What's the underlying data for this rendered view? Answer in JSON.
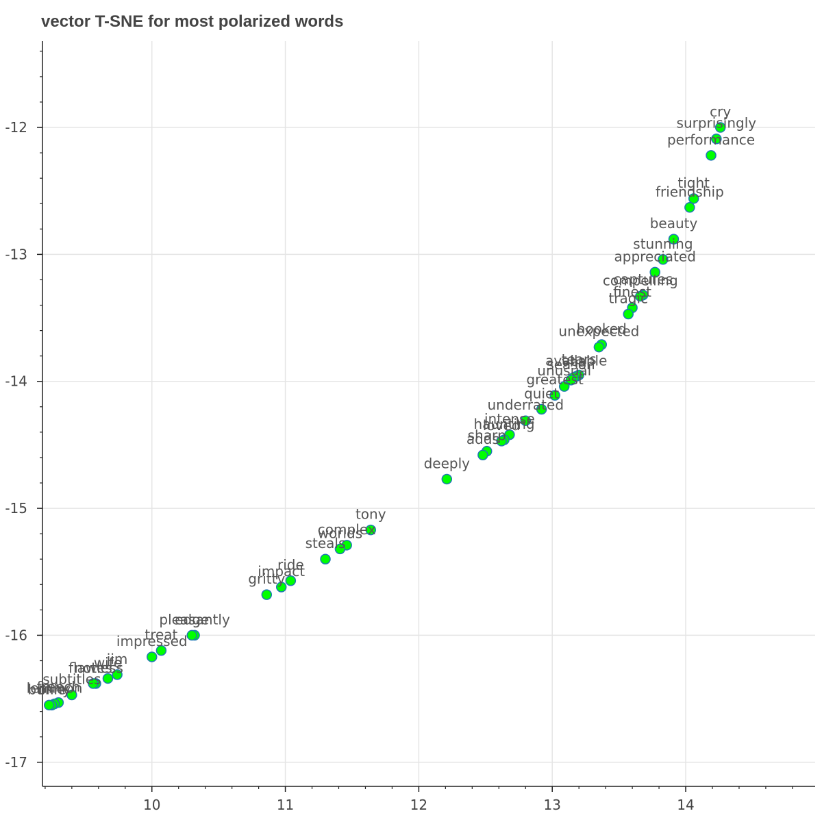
{
  "chart_data": {
    "type": "scatter",
    "title": "vector T-SNE for most polarized words",
    "xlabel": "",
    "ylabel": "",
    "xlim": [
      9.18,
      14.97
    ],
    "ylim": [
      -17.19,
      -11.32
    ],
    "grid": true,
    "x_ticks": [
      10,
      11,
      12,
      13,
      14
    ],
    "y_ticks": [
      -12,
      -13,
      -14,
      -15,
      -16,
      -17
    ],
    "marker_color": "#00ff00",
    "marker_edge_color": "#1f77b4",
    "points": [
      {
        "x": 14.26,
        "y": -12.0,
        "label": "cry"
      },
      {
        "x": 14.23,
        "y": -12.09,
        "label": "surprisingly"
      },
      {
        "x": 14.19,
        "y": -12.22,
        "label": "performance"
      },
      {
        "x": 14.06,
        "y": -12.56,
        "label": "tight"
      },
      {
        "x": 14.03,
        "y": -12.63,
        "label": "friendship"
      },
      {
        "x": 13.91,
        "y": -12.88,
        "label": "beauty"
      },
      {
        "x": 13.83,
        "y": -13.04,
        "label": "stunning"
      },
      {
        "x": 13.77,
        "y": -13.14,
        "label": "appreciated"
      },
      {
        "x": 13.68,
        "y": -13.32,
        "label": "captures"
      },
      {
        "x": 13.66,
        "y": -13.33,
        "label": "compelling"
      },
      {
        "x": 13.6,
        "y": -13.42,
        "label": "finest"
      },
      {
        "x": 13.57,
        "y": -13.47,
        "label": "tragic"
      },
      {
        "x": 13.37,
        "y": -13.71,
        "label": "hooked"
      },
      {
        "x": 13.35,
        "y": -13.73,
        "label": "unexpected"
      },
      {
        "x": 13.2,
        "y": -13.95,
        "label": "tears"
      },
      {
        "x": 13.18,
        "y": -13.96,
        "label": "available"
      },
      {
        "x": 13.16,
        "y": -13.97,
        "label": "vhs"
      },
      {
        "x": 13.14,
        "y": -13.99,
        "label": "season"
      },
      {
        "x": 13.09,
        "y": -14.04,
        "label": "unusual"
      },
      {
        "x": 13.02,
        "y": -14.11,
        "label": "greatest"
      },
      {
        "x": 12.92,
        "y": -14.22,
        "label": "quiet"
      },
      {
        "x": 12.8,
        "y": -14.31,
        "label": "underrated"
      },
      {
        "x": 12.68,
        "y": -14.42,
        "label": "intense"
      },
      {
        "x": 12.64,
        "y": -14.46,
        "label": "haunting"
      },
      {
        "x": 12.62,
        "y": -14.47,
        "label": "loved"
      },
      {
        "x": 12.51,
        "y": -14.55,
        "label": "sharp"
      },
      {
        "x": 12.48,
        "y": -14.58,
        "label": "adds"
      },
      {
        "x": 12.21,
        "y": -14.77,
        "label": "deeply"
      },
      {
        "x": 11.64,
        "y": -15.17,
        "label": "tony"
      },
      {
        "x": 11.46,
        "y": -15.29,
        "label": "complex"
      },
      {
        "x": 11.41,
        "y": -15.32,
        "label": "worlds"
      },
      {
        "x": 11.3,
        "y": -15.4,
        "label": "steals"
      },
      {
        "x": 11.04,
        "y": -15.57,
        "label": "ride"
      },
      {
        "x": 10.97,
        "y": -15.62,
        "label": "impact"
      },
      {
        "x": 10.86,
        "y": -15.68,
        "label": "gritty"
      },
      {
        "x": 10.32,
        "y": -16.0,
        "label": "pleasantly"
      },
      {
        "x": 10.3,
        "y": -16.0,
        "label": "edge"
      },
      {
        "x": 10.07,
        "y": -16.12,
        "label": "treat"
      },
      {
        "x": 10.0,
        "y": -16.17,
        "label": "impressed"
      },
      {
        "x": 9.74,
        "y": -16.31,
        "label": "jim"
      },
      {
        "x": 9.67,
        "y": -16.34,
        "label": "wife"
      },
      {
        "x": 9.58,
        "y": -16.38,
        "label": "flawless"
      },
      {
        "x": 9.56,
        "y": -16.38,
        "label": "notes"
      },
      {
        "x": 9.4,
        "y": -16.47,
        "label": "subtitles"
      },
      {
        "x": 9.3,
        "y": -16.53,
        "label": "french"
      },
      {
        "x": 9.27,
        "y": -16.54,
        "label": "lemmon"
      },
      {
        "x": 9.25,
        "y": -16.55,
        "label": "ollie"
      },
      {
        "x": 9.23,
        "y": -16.55,
        "label": "bunny"
      }
    ]
  }
}
